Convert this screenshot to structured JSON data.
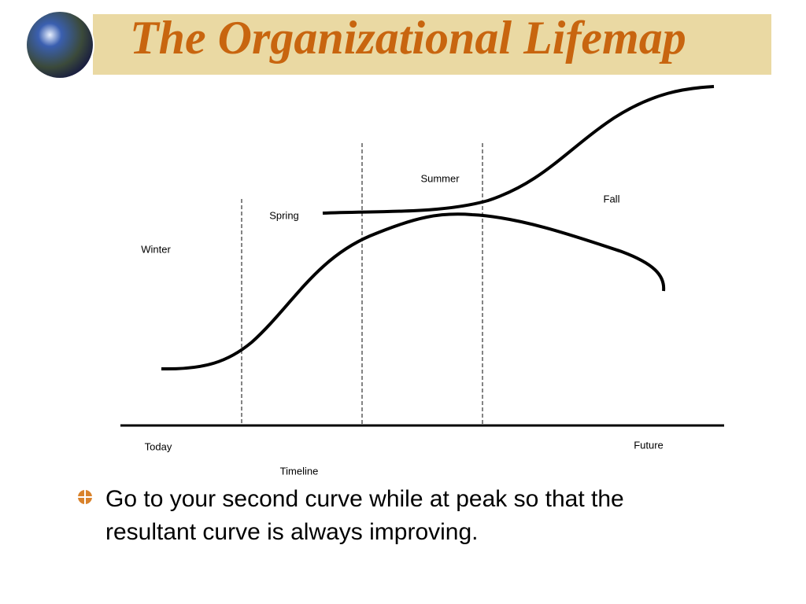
{
  "header": {
    "title": "The Organizational Lifemap"
  },
  "diagram": {
    "seasons": [
      "Winter",
      "Spring",
      "Summer",
      "Fall"
    ],
    "axis_start": "Today",
    "axis_end": "Future",
    "axis_label": "Timeline"
  },
  "bullets": [
    "Go to your second curve while at peak so that the resultant curve is always improving."
  ]
}
